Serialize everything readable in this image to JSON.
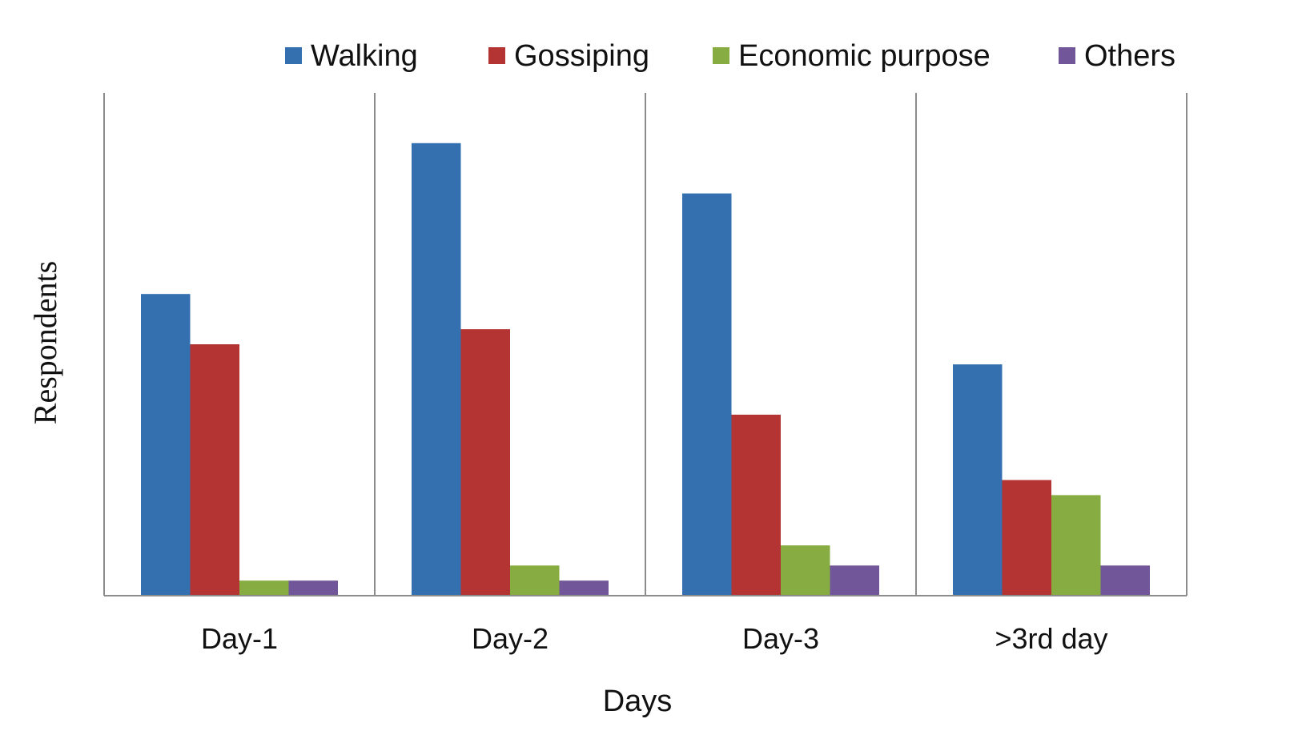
{
  "chart_data": {
    "type": "bar",
    "categories": [
      "Day-1",
      "Day-2",
      "Day-3",
      ">3rd day"
    ],
    "series": [
      {
        "name": "Walking",
        "color": "#3470B0",
        "values": [
          60,
          90,
          80,
          46
        ]
      },
      {
        "name": "Gossiping",
        "color": "#B33432",
        "values": [
          50,
          53,
          36,
          23
        ]
      },
      {
        "name": "Economic purpose",
        "color": "#87AC42",
        "values": [
          3,
          6,
          10,
          20
        ]
      },
      {
        "name": "Others",
        "color": "#72569A",
        "values": [
          3,
          3,
          6,
          6
        ]
      }
    ],
    "title": "",
    "xlabel": "Days",
    "ylabel": "Respondents",
    "ylim": [
      0,
      100
    ],
    "grid": "vertical category separators",
    "legend": "top"
  }
}
